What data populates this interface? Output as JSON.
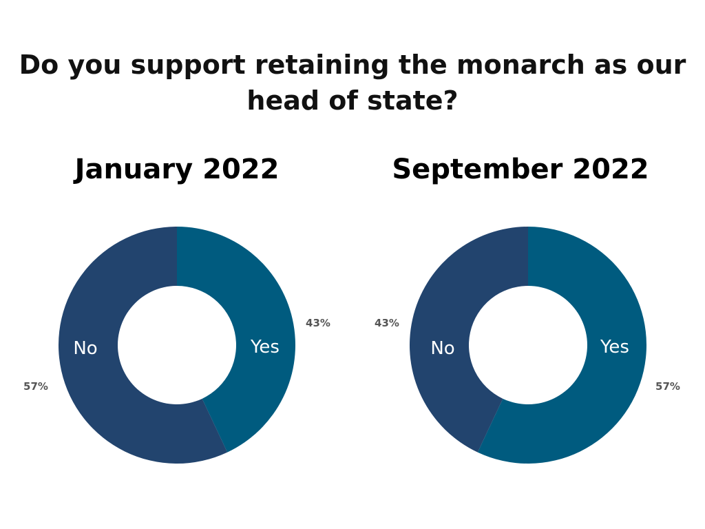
{
  "question": {
    "line1": "Do you support retaining the monarch as our",
    "line2": "head of state?"
  },
  "colors": {
    "yes": "#005b7f",
    "no": "#22446e"
  },
  "chart_data": [
    {
      "type": "pie",
      "title": "January 2022",
      "labels": [
        "Yes",
        "No"
      ],
      "values": [
        43,
        57
      ],
      "value_labels": [
        "43%",
        "57%"
      ]
    },
    {
      "type": "pie",
      "title": "September 2022",
      "labels": [
        "Yes",
        "No"
      ],
      "values": [
        57,
        43
      ],
      "value_labels": [
        "57%",
        "43%"
      ]
    }
  ]
}
